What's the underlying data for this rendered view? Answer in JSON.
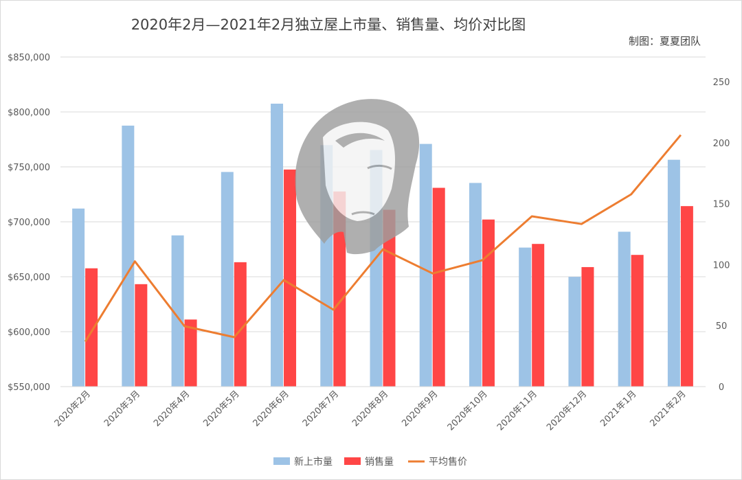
{
  "title": "2020年2月—2021年2月独立屋上市量、销售量、均价对比图",
  "credit": "制图：夏夏团队",
  "colors": {
    "new_listings": "#9dc3e6",
    "sales": "#ff4646",
    "avg_price": "#ed7d31",
    "grid": "#d9d9d9",
    "watermark": "#9e9e9e"
  },
  "watermark_icon": "woman-portrait-silhouette",
  "chart_data": {
    "type": "bar",
    "title": "2020年2月—2021年2月独立屋上市量、销售量、均价对比图",
    "categories": [
      "2020年2月",
      "2020年3月",
      "2020年4月",
      "2020年5月",
      "2020年6月",
      "2020年7月",
      "2020年8月",
      "2020年9月",
      "2020年10月",
      "2020年11月",
      "2020年12月",
      "2021年1月",
      "2021年2月"
    ],
    "series": [
      {
        "name": "新上市量",
        "type": "bar",
        "axis": "right",
        "values": [
          146,
          214,
          124,
          176,
          232,
          198,
          194,
          199,
          167,
          114,
          90,
          127,
          186
        ]
      },
      {
        "name": "销售量",
        "type": "bar",
        "axis": "right",
        "values": [
          97,
          84,
          55,
          102,
          178,
          160,
          145,
          163,
          137,
          117,
          98,
          108,
          148
        ]
      },
      {
        "name": "平均售价",
        "type": "line",
        "axis": "left",
        "values": [
          591000,
          664000,
          605000,
          595000,
          647000,
          620000,
          675000,
          653000,
          665000,
          705000,
          698000,
          725000,
          779000
        ]
      }
    ],
    "y_left": {
      "min": 550000,
      "max": 850000,
      "ticks": [
        550000,
        600000,
        650000,
        700000,
        750000,
        800000,
        850000
      ],
      "tick_labels": [
        "$550,000",
        "$600,000",
        "$650,000",
        "$700,000",
        "$750,000",
        "$800,000",
        "$850,000"
      ]
    },
    "y_right": {
      "min": 0,
      "max": 250,
      "ticks": [
        0,
        50,
        100,
        150,
        200,
        250
      ],
      "tick_labels": [
        "0",
        "50",
        "100",
        "150",
        "200",
        "250"
      ]
    },
    "xlabel": "",
    "ylabel": "",
    "grid": true,
    "legend": {
      "position": "bottom",
      "entries": [
        "新上市量",
        "销售量",
        "平均售价"
      ]
    }
  }
}
